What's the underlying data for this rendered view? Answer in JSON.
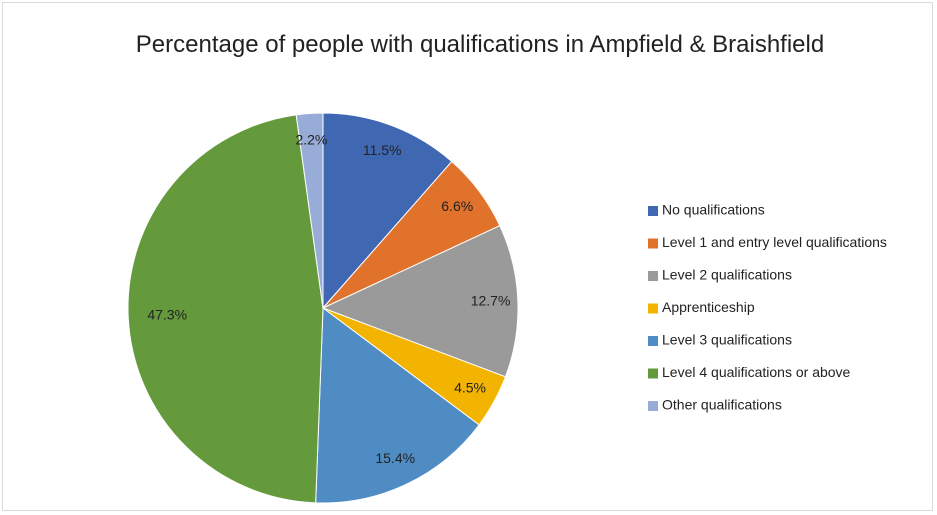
{
  "chart_data": {
    "type": "pie",
    "title": "Percentage of people with qualifications in Ampfield & Braishfield",
    "categories": [
      "No qualifications",
      "Level 1 and entry level qualifications",
      "Level 2 qualifications",
      "Apprenticeship",
      "Level 3 qualifications",
      "Level 4 qualifications or above",
      "Other qualifications"
    ],
    "values": [
      11.5,
      6.6,
      12.7,
      4.5,
      15.4,
      47.3,
      2.2
    ],
    "value_labels": [
      "11.5%",
      "6.6%",
      "12.7%",
      "4.5%",
      "15.4%",
      "47.3%",
      "2.2%"
    ],
    "colors": [
      "#4068b2",
      "#e0722c",
      "#9a9a9a",
      "#f2b400",
      "#4f8cc4",
      "#649a3c",
      "#98acd8"
    ],
    "legend": "right"
  }
}
